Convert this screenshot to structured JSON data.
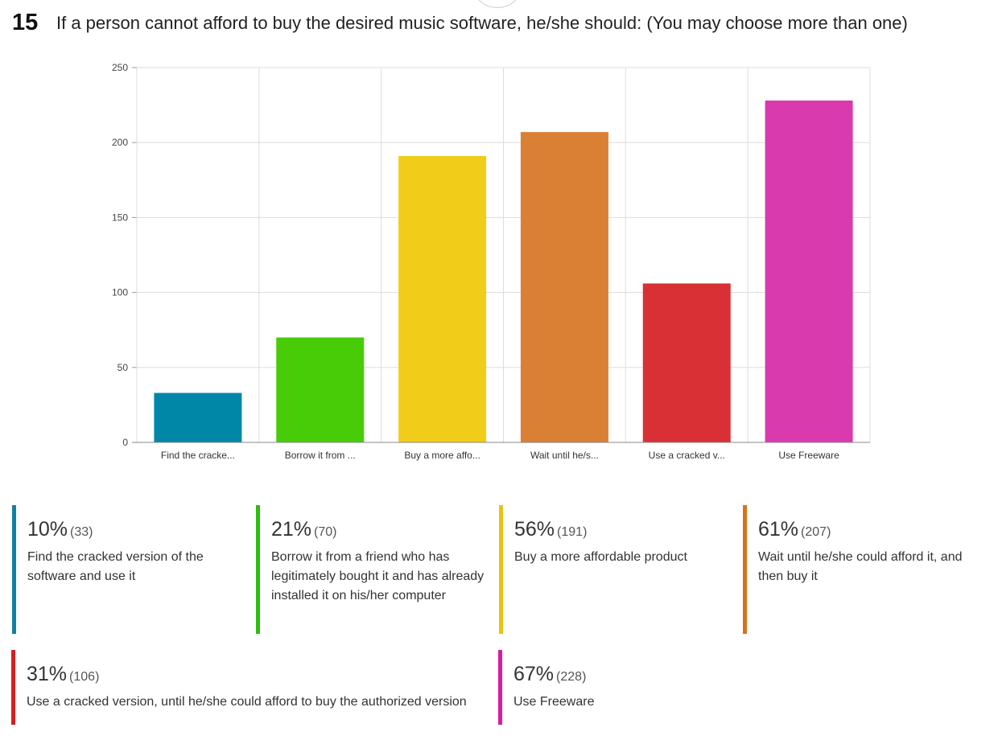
{
  "question": {
    "number": "15",
    "text": "If a person cannot afford to buy the desired music software, he/she should: (You may choose more than one)"
  },
  "chart_data": {
    "type": "bar",
    "categories": [
      "Find the cracke...",
      "Borrow it from ...",
      "Buy a more affo...",
      "Wait until he/s...",
      "Use a cracked v...",
      "Use Freeware"
    ],
    "values": [
      33,
      70,
      191,
      207,
      106,
      228
    ],
    "colors": [
      "#0087a8",
      "#48cc08",
      "#f1cc18",
      "#d98035",
      "#d83034",
      "#d93aae"
    ],
    "ylim": [
      0,
      250
    ],
    "yticks": [
      0,
      50,
      100,
      150,
      200,
      250
    ],
    "grid": true
  },
  "legend": [
    {
      "percent": "10%",
      "count": "(33)",
      "label": "Find the cracked version of the software and use it",
      "color": "#137fa4"
    },
    {
      "percent": "21%",
      "count": "(70)",
      "label": "Borrow it from a friend who has legitimately bought it and has already installed it on his/her computer",
      "color": "#2cbd0f"
    },
    {
      "percent": "56%",
      "count": "(191)",
      "label": "Buy a more affordable product",
      "color": "#ecc014"
    },
    {
      "percent": "61%",
      "count": "(207)",
      "label": "Wait until he/she could afford it, and then buy it",
      "color": "#d87317"
    },
    {
      "percent": "31%",
      "count": "(106)",
      "label": "Use a cracked version, until he/she could afford to buy the authorized version",
      "color": "#d71e23"
    },
    {
      "percent": "67%",
      "count": "(228)",
      "label": "Use Freeware",
      "color": "#d81e9f"
    }
  ]
}
